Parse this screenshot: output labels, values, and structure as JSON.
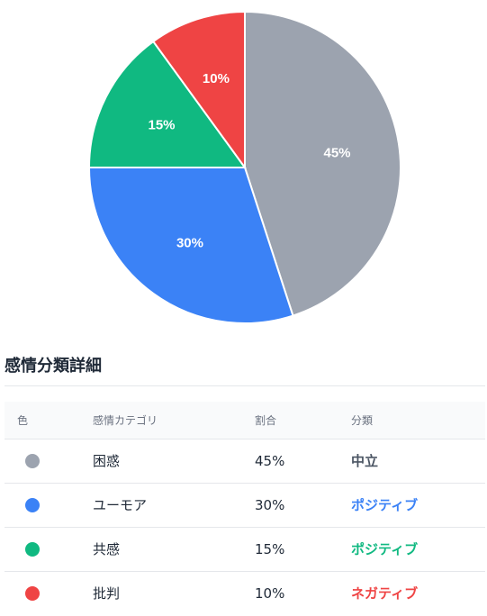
{
  "chart_data": {
    "type": "pie",
    "slices": [
      {
        "category": "困惑",
        "value": 45,
        "label": "45%",
        "color": "#9ca3af"
      },
      {
        "category": "ユーモア",
        "value": 30,
        "label": "30%",
        "color": "#3b82f6"
      },
      {
        "category": "共感",
        "value": 15,
        "label": "15%",
        "color": "#10b981"
      },
      {
        "category": "批判",
        "value": 10,
        "label": "10%",
        "color": "#ef4444"
      }
    ]
  },
  "section_title": "感情分類詳細",
  "table": {
    "headers": [
      "色",
      "感情カテゴリ",
      "割合",
      "分類"
    ],
    "rows": [
      {
        "color": "#9ca3af",
        "category": "困惑",
        "percent": "45%",
        "class": "中立",
        "class_color": "#4b5563"
      },
      {
        "color": "#3b82f6",
        "category": "ユーモア",
        "percent": "30%",
        "class": "ポジティブ",
        "class_color": "#3b82f6"
      },
      {
        "color": "#10b981",
        "category": "共感",
        "percent": "15%",
        "class": "ポジティブ",
        "class_color": "#10b981"
      },
      {
        "color": "#ef4444",
        "category": "批判",
        "percent": "10%",
        "class": "ネガティブ",
        "class_color": "#ef4444"
      }
    ]
  }
}
